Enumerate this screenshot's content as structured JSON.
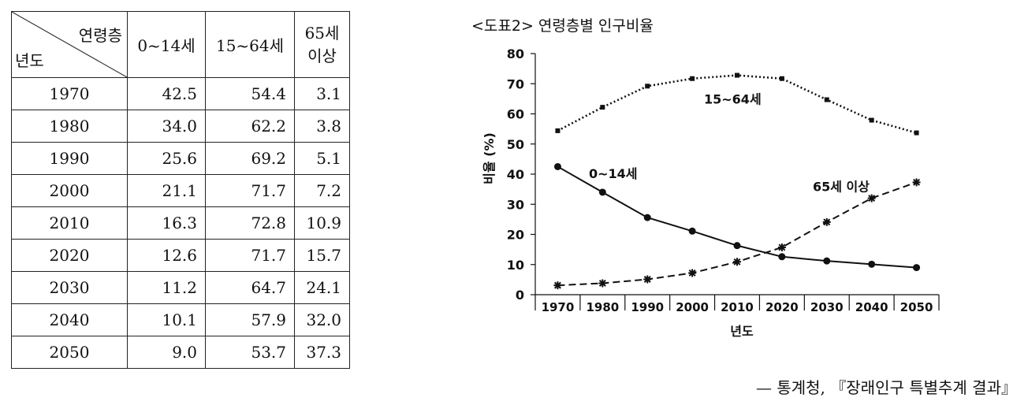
{
  "table": {
    "corner_top": "연령층",
    "corner_bottom": "년도",
    "col1": "0~14세",
    "col2": "15~64세",
    "col3_line1": "65세",
    "col3_line2": "이상",
    "rows": [
      {
        "year": "1970",
        "a": "42.5",
        "b": "54.4",
        "c": "3.1"
      },
      {
        "year": "1980",
        "a": "34.0",
        "b": "62.2",
        "c": "3.8"
      },
      {
        "year": "1990",
        "a": "25.6",
        "b": "69.2",
        "c": "5.1"
      },
      {
        "year": "2000",
        "a": "21.1",
        "b": "71.7",
        "c": "7.2"
      },
      {
        "year": "2010",
        "a": "16.3",
        "b": "72.8",
        "c": "10.9"
      },
      {
        "year": "2020",
        "a": "12.6",
        "b": "71.7",
        "c": "15.7"
      },
      {
        "year": "2030",
        "a": "11.2",
        "b": "64.7",
        "c": "24.1"
      },
      {
        "year": "2040",
        "a": "10.1",
        "b": "57.9",
        "c": "32.0"
      },
      {
        "year": "2050",
        "a": "9.0",
        "b": "53.7",
        "c": "37.3"
      }
    ]
  },
  "chart_data": {
    "type": "line",
    "title": "<도표2> 연령층별 인구비율",
    "xlabel": "년도",
    "ylabel": "비율 (%)",
    "x": [
      "1970",
      "1980",
      "1990",
      "2000",
      "2010",
      "2020",
      "2030",
      "2040",
      "2050"
    ],
    "yticks": [
      "0",
      "10",
      "20",
      "30",
      "40",
      "50",
      "60",
      "70",
      "80"
    ],
    "ylim": [
      0,
      80
    ],
    "series": [
      {
        "name": "0~14세",
        "style": "solid",
        "marker": "circle",
        "values": [
          42.5,
          34.0,
          25.6,
          21.1,
          16.3,
          12.6,
          11.2,
          10.1,
          9.0
        ]
      },
      {
        "name": "15~64세",
        "style": "dotted",
        "marker": "square",
        "values": [
          54.4,
          62.2,
          69.2,
          71.7,
          72.8,
          71.7,
          64.7,
          57.9,
          53.7
        ]
      },
      {
        "name": "65세 이상",
        "style": "dashed",
        "marker": "star",
        "values": [
          3.1,
          3.8,
          5.1,
          7.2,
          10.9,
          15.7,
          24.1,
          32.0,
          37.3
        ]
      }
    ],
    "grid": false,
    "line_color": "#111111"
  },
  "source": "— 통계청, 『장래인구 특별추계 결과』"
}
